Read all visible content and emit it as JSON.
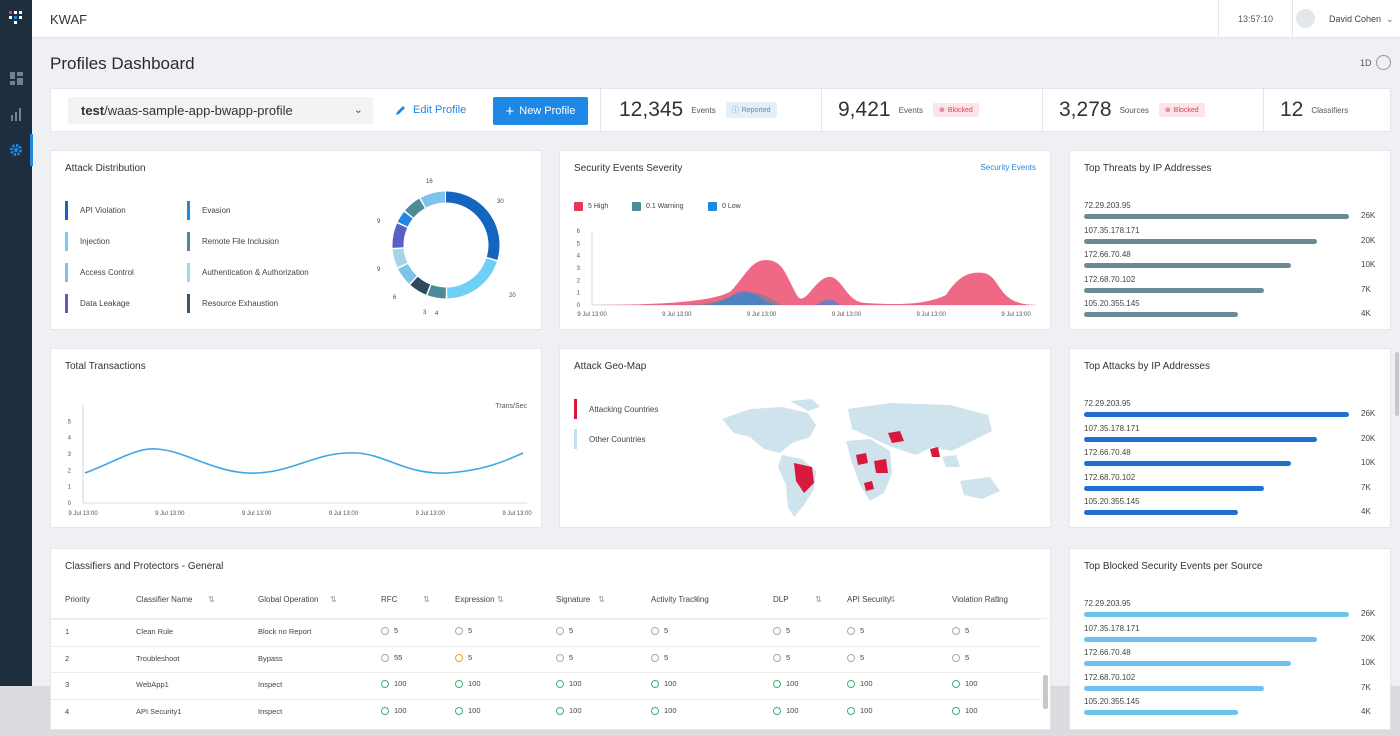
{
  "app": {
    "name": "KWAF",
    "time": "13:57:10",
    "user": "David Cohen"
  },
  "page": {
    "title": "Profiles Dashboard",
    "period": "1D"
  },
  "profile": {
    "prefix": "test",
    "name": "/waas-sample-app-bwapp-profile",
    "edit_label": "Edit Profile",
    "new_label": "New Profile"
  },
  "stats": [
    {
      "value": "12,345",
      "label": "Events",
      "badge": "Reported"
    },
    {
      "value": "9,421",
      "label": "Events",
      "badge": "Blocked"
    },
    {
      "value": "3,278",
      "label": "Sources",
      "badge": "Blocked"
    },
    {
      "value": "12",
      "label": "Classifiers"
    }
  ],
  "attack_distribution": {
    "title": "Attack Distribution",
    "items": [
      {
        "label": "API Violation",
        "color": "#1565c0"
      },
      {
        "label": "Evasion",
        "color": "#1e88e5"
      },
      {
        "label": "Injection",
        "color": "#6fd0f5"
      },
      {
        "label": "Remote File Inclusion",
        "color": "#4e8a99"
      },
      {
        "label": "Access Control",
        "color": "#7ec3ea"
      },
      {
        "label": "Authentication & Authorization",
        "color": "#a8d4e8"
      },
      {
        "label": "Data Leakage",
        "color": "#5860c8"
      },
      {
        "label": "Resource Exhaustion",
        "color": "#3d5566"
      }
    ],
    "donut_labels": [
      "16",
      "30",
      "20",
      "4",
      "3",
      "6",
      "9",
      "9"
    ]
  },
  "severity": {
    "title": "Security Events Severity",
    "link": "Security Events",
    "legend": [
      {
        "label": "5 High",
        "color": "#e8355a"
      },
      {
        "label": "0.1 Warning",
        "color": "#4e8a99"
      },
      {
        "label": "0 Low",
        "color": "#1e88e5"
      }
    ],
    "y_ticks": [
      "6",
      "5",
      "4",
      "3",
      "2",
      "1",
      "0"
    ],
    "x_ticks": [
      "9 Jul 13:00",
      "9 Jul 13:00",
      "9 Jul 13:00",
      "9 Jul 13:00",
      "9 Jul 13:00",
      "9 Jul 13:00"
    ]
  },
  "top_threats": {
    "title": "Top Threats by IP Addresses",
    "rows": [
      {
        "ip": "72.29.203.95",
        "value": "26K",
        "pct": 100
      },
      {
        "ip": "107.35.178.171",
        "value": "20K",
        "pct": 88
      },
      {
        "ip": "172.66.70.48",
        "value": "10K",
        "pct": 78
      },
      {
        "ip": "172.68.70.102",
        "value": "7K",
        "pct": 68
      },
      {
        "ip": "105.20.355.145",
        "value": "4K",
        "pct": 58
      }
    ]
  },
  "transactions": {
    "title": "Total Transactions",
    "unit": "Trans/Sec",
    "y_ticks": [
      "5",
      "4",
      "3",
      "2",
      "1",
      "0"
    ],
    "x_ticks": [
      "9 Jul 13:00",
      "9 Jul 13:00",
      "9 Jul 13:00",
      "9 Jul 13:00",
      "9 Jul 13:00",
      "9 Jul 13:00"
    ]
  },
  "geo": {
    "title": "Attack Geo-Map",
    "attacking": "Attacking Countries",
    "other": "Other Countries"
  },
  "top_attacks": {
    "title": "Top Attacks by IP Addresses",
    "rows": [
      {
        "ip": "72.29.203.95",
        "value": "26K",
        "pct": 100
      },
      {
        "ip": "107.35.178.171",
        "value": "20K",
        "pct": 88
      },
      {
        "ip": "172.66.70.48",
        "value": "10K",
        "pct": 78
      },
      {
        "ip": "172.68.70.102",
        "value": "7K",
        "pct": 68
      },
      {
        "ip": "105.20.355.145",
        "value": "4K",
        "pct": 58
      }
    ]
  },
  "classifiers": {
    "title": "Classifiers and Protectors - General",
    "columns": [
      "Priority",
      "Classifier Name",
      "Global Operation",
      "RFC",
      "Expression",
      "Signature",
      "Activity Tracking",
      "DLP",
      "API Security",
      "Violation Rating"
    ],
    "rows": [
      {
        "priority": "1",
        "name": "Clean Rule",
        "op": "Block no Report",
        "vals": [
          "5",
          "5",
          "5",
          "5",
          "5",
          "5",
          "5"
        ],
        "status": [
          "n",
          "n",
          "n",
          "n",
          "n",
          "n",
          "n"
        ]
      },
      {
        "priority": "2",
        "name": "Troubleshoot",
        "op": "Bypass",
        "vals": [
          "55",
          "5",
          "5",
          "5",
          "5",
          "5",
          "5"
        ],
        "status": [
          "n",
          "w",
          "n",
          "n",
          "n",
          "n",
          "n"
        ]
      },
      {
        "priority": "3",
        "name": "WebApp1",
        "op": "Inspect",
        "vals": [
          "100",
          "100",
          "100",
          "100",
          "100",
          "100",
          "100"
        ],
        "status": [
          "o",
          "o",
          "o",
          "o",
          "o",
          "o",
          "o"
        ]
      },
      {
        "priority": "4",
        "name": "API Security1",
        "op": "Inspect",
        "vals": [
          "100",
          "100",
          "100",
          "100",
          "100",
          "100",
          "100"
        ],
        "status": [
          "o",
          "o",
          "o",
          "o",
          "o",
          "o",
          "o"
        ]
      }
    ]
  },
  "top_blocked": {
    "title": "Top Blocked Security Events per Source",
    "rows": [
      {
        "ip": "72.29.203.95",
        "value": "26K",
        "pct": 100
      },
      {
        "ip": "107.35.178.171",
        "value": "20K",
        "pct": 88
      },
      {
        "ip": "172.66.70.48",
        "value": "10K",
        "pct": 78
      },
      {
        "ip": "172.68.70.102",
        "value": "7K",
        "pct": 68
      },
      {
        "ip": "105.20.355.145",
        "value": "4K",
        "pct": 58
      }
    ]
  },
  "colors": {
    "accent": "#1e88e5",
    "high": "#e8355a",
    "threat_bar": "#6b8a96",
    "attack_bar": "#1e6fd0",
    "blocked_bar": "#6ec2ee"
  }
}
